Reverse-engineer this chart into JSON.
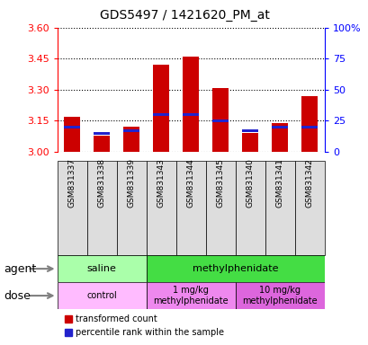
{
  "title": "GDS5497 / 1421620_PM_at",
  "samples": [
    "GSM831337",
    "GSM831338",
    "GSM831339",
    "GSM831343",
    "GSM831344",
    "GSM831345",
    "GSM831340",
    "GSM831341",
    "GSM831342"
  ],
  "transformed_count": [
    3.17,
    3.08,
    3.12,
    3.42,
    3.46,
    3.31,
    3.09,
    3.14,
    3.27
  ],
  "percentile_rank": [
    20,
    15,
    17,
    30,
    30,
    25,
    17,
    20,
    20
  ],
  "ylim_left": [
    3.0,
    3.6
  ],
  "yticks_left": [
    3.0,
    3.15,
    3.3,
    3.45,
    3.6
  ],
  "yticks_right": [
    0,
    25,
    50,
    75,
    100
  ],
  "bar_color_red": "#cc0000",
  "bar_color_blue": "#2222cc",
  "agent_groups": [
    {
      "label": "saline",
      "start": 0,
      "end": 3,
      "color": "#aaffaa"
    },
    {
      "label": "methylphenidate",
      "start": 3,
      "end": 9,
      "color": "#44dd44"
    }
  ],
  "dose_groups": [
    {
      "label": "control",
      "start": 0,
      "end": 3,
      "color": "#ffbbff"
    },
    {
      "label": "1 mg/kg\nmethylphenidate",
      "start": 3,
      "end": 6,
      "color": "#ee88ee"
    },
    {
      "label": "10 mg/kg\nmethylphenidate",
      "start": 6,
      "end": 9,
      "color": "#dd66dd"
    }
  ],
  "legend_red": "transformed count",
  "legend_blue": "percentile rank within the sample",
  "bar_width": 0.55,
  "xtick_bg_color": "#dddddd"
}
